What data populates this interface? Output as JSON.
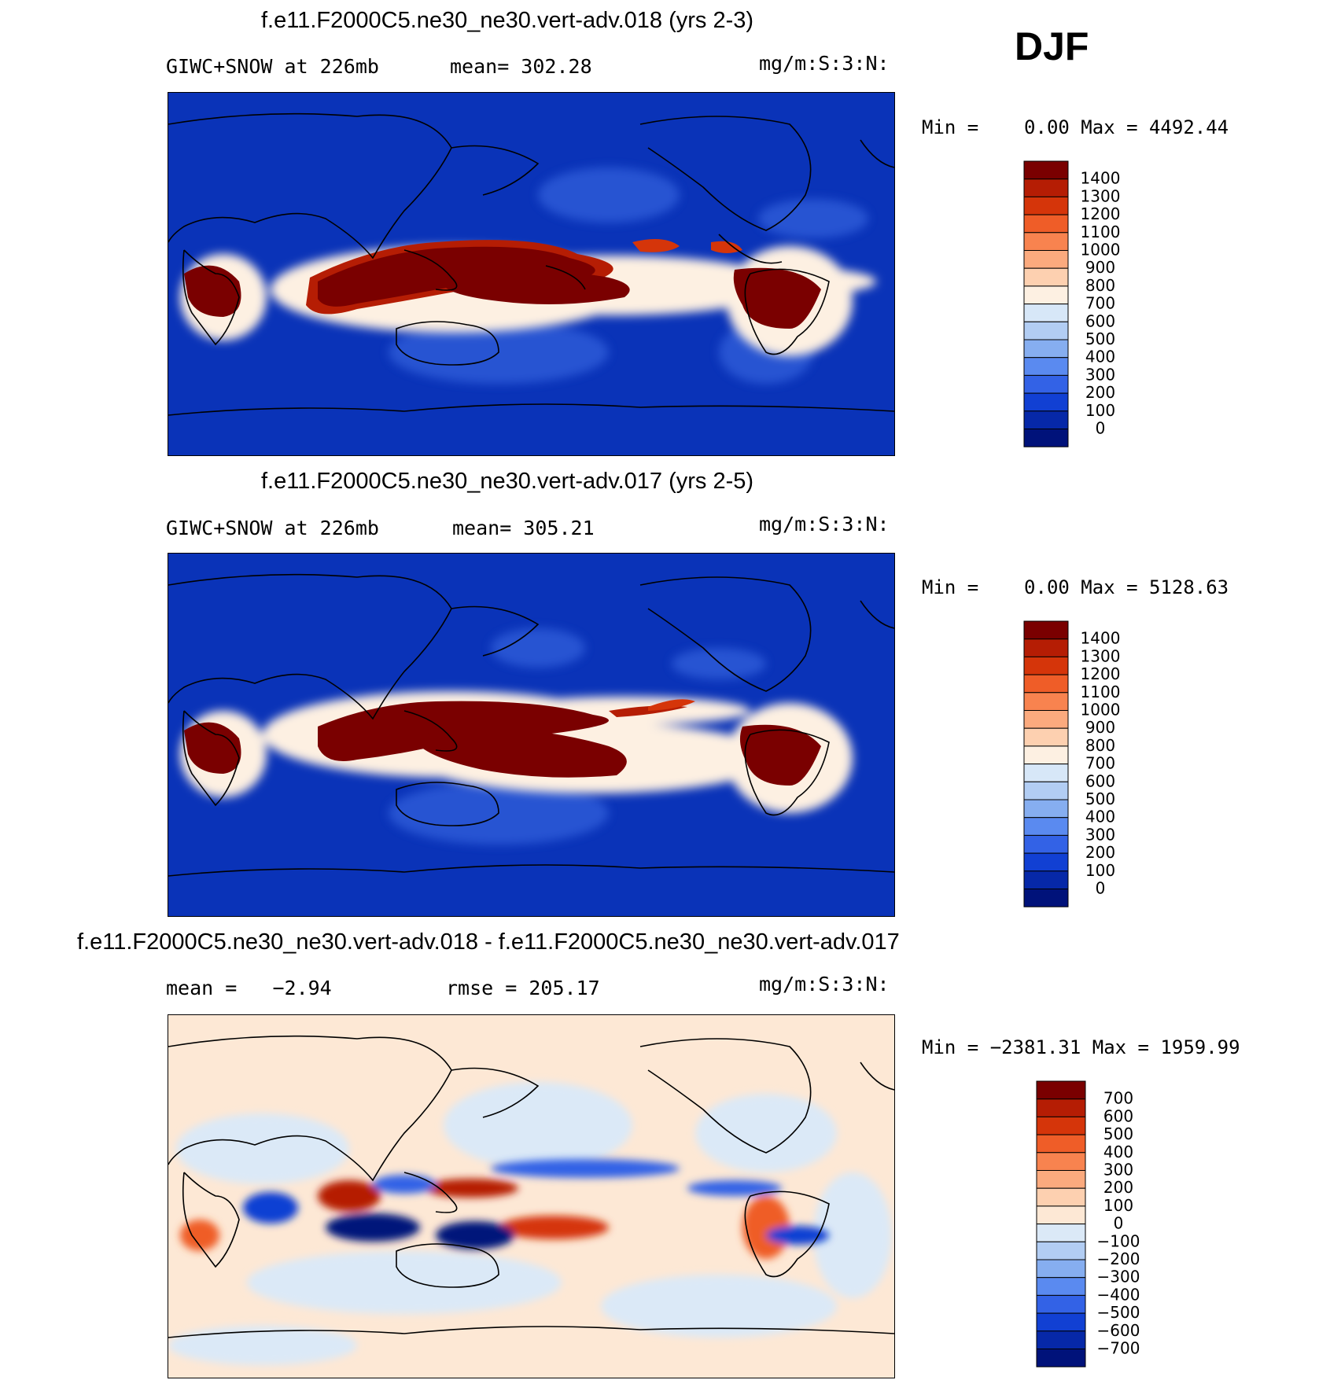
{
  "season": "DJF",
  "colors": {
    "ocean_low": "#0a33b8",
    "land_line": "#000000",
    "hot": "#8b0000",
    "diff_pos_bg": "#fde8d5",
    "diff_neg_bg": "#dbe9f7"
  },
  "panels": [
    {
      "title": "f.e11.F2000C5.ne30_ne30.vert-adv.018 (yrs 2-3)",
      "left_label": "GIWC+SNOW at 226mb",
      "mean_label": "mean= 302.28",
      "units": "mg/m:S:3:N:",
      "minmax": "Min =    0.00 Max = 4492.44"
    },
    {
      "title": "f.e11.F2000C5.ne30_ne30.vert-adv.017 (yrs 2-5)",
      "left_label": "GIWC+SNOW at 226mb",
      "mean_label": "mean= 305.21",
      "units": "mg/m:S:3:N:",
      "minmax": "Min =    0.00 Max = 5128.63"
    },
    {
      "title": "f.e11.F2000C5.ne30_ne30.vert-adv.018 - f.e11.F2000C5.ne30_ne30.vert-adv.017",
      "left_label": "mean =   −2.94",
      "mean_label": "rmse = 205.17",
      "units": "mg/m:S:3:N:",
      "minmax": "Min = −2381.31 Max = 1959.99"
    }
  ],
  "chart_data": [
    {
      "type": "heatmap",
      "variable": "GIWC+SNOW at 226mb",
      "mean": 302.28,
      "min": 0.0,
      "max": 4492.44,
      "colorbar": {
        "labels": [
          "1400",
          "1300",
          "1200",
          "1100",
          "1000",
          "900",
          "800",
          "700",
          "600",
          "500",
          "400",
          "300",
          "200",
          "100",
          "0"
        ],
        "colors": [
          "#7a0000",
          "#b51d04",
          "#d5350a",
          "#ef5d28",
          "#f8834f",
          "#fbaa7e",
          "#fdd0b0",
          "#fdf0e2",
          "#d7e7f8",
          "#b2cdf3",
          "#86aef0",
          "#5a8af0",
          "#3362e6",
          "#1140d3",
          "#0628a8",
          "#00127a"
        ]
      }
    },
    {
      "type": "heatmap",
      "variable": "GIWC+SNOW at 226mb",
      "mean": 305.21,
      "min": 0.0,
      "max": 5128.63,
      "colorbar": {
        "labels": [
          "1400",
          "1300",
          "1200",
          "1100",
          "1000",
          "900",
          "800",
          "700",
          "600",
          "500",
          "400",
          "300",
          "200",
          "100",
          "0"
        ],
        "colors": [
          "#7a0000",
          "#b51d04",
          "#d5350a",
          "#ef5d28",
          "#f8834f",
          "#fbaa7e",
          "#fdd0b0",
          "#fdf0e2",
          "#d7e7f8",
          "#b2cdf3",
          "#86aef0",
          "#5a8af0",
          "#3362e6",
          "#1140d3",
          "#0628a8",
          "#00127a"
        ]
      }
    },
    {
      "type": "heatmap",
      "variable": "difference",
      "mean": -2.94,
      "rmse": 205.17,
      "min": -2381.31,
      "max": 1959.99,
      "colorbar": {
        "labels": [
          "700",
          "600",
          "500",
          "400",
          "300",
          "200",
          "100",
          "0",
          "−100",
          "−200",
          "−300",
          "−400",
          "−500",
          "−600",
          "−700"
        ],
        "colors": [
          "#7a0000",
          "#b51d04",
          "#d5350a",
          "#ef5d28",
          "#f8834f",
          "#fbaa7e",
          "#fdd0b0",
          "#fde8d5",
          "#dbe9f7",
          "#b2cdf3",
          "#86aef0",
          "#5a8af0",
          "#3362e6",
          "#1140d3",
          "#0628a8",
          "#00127a"
        ]
      }
    }
  ]
}
